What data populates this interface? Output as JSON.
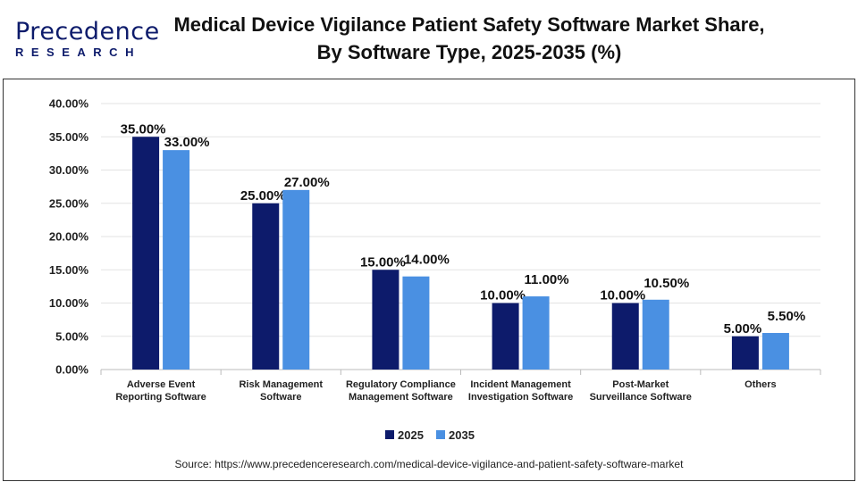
{
  "logo": {
    "line1": "Precedence",
    "line2": "RESEARCH"
  },
  "title": "Medical Device Vigilance Patient Safety Software Market Share, By Software Type, 2025-2035 (%)",
  "source": "Source: https://www.precedenceresearch.com/medical-device-vigilance-and-patient-safety-software-market",
  "colors": {
    "2025": "#0d1b6b",
    "2035": "#4a90e2"
  },
  "chart_data": {
    "type": "bar",
    "title": "Medical Device Vigilance Patient Safety Software Market Share, By Software Type, 2025-2035 (%)",
    "categories": [
      [
        "Adverse Event",
        "Reporting Software"
      ],
      [
        "Risk Management",
        "Software"
      ],
      [
        "Regulatory Compliance",
        "Management Software"
      ],
      [
        "Incident Management",
        "Investigation Software"
      ],
      [
        "Post-Market",
        "Surveillance Software"
      ],
      [
        "Others"
      ]
    ],
    "series": [
      {
        "name": "2025",
        "values": [
          35,
          25,
          15,
          10,
          10,
          5
        ],
        "labels": [
          "35.00%",
          "25.00%",
          "15.00%",
          "10.00%",
          "10.00%",
          "5.00%"
        ]
      },
      {
        "name": "2035",
        "values": [
          33,
          27,
          14,
          11,
          10.5,
          5.5
        ],
        "labels": [
          "33.00%",
          "27.00%",
          "14.00%",
          "11.00%",
          "10.50%",
          "5.50%"
        ]
      }
    ],
    "ylim": [
      0,
      40
    ],
    "yticks": [
      "0.00%",
      "5.00%",
      "10.00%",
      "15.00%",
      "20.00%",
      "25.00%",
      "30.00%",
      "35.00%",
      "40.00%"
    ],
    "xlabel": "",
    "ylabel": "",
    "grid": true,
    "legend": "bottom"
  }
}
